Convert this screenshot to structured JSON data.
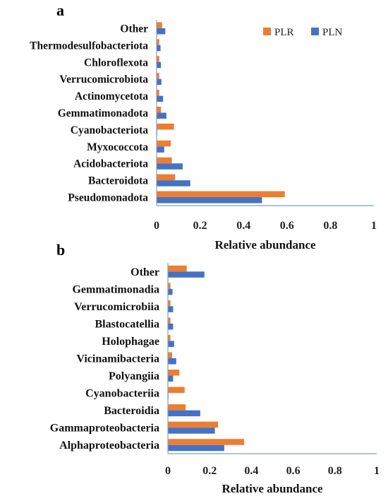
{
  "chart_data": [
    {
      "type": "bar",
      "orientation": "horizontal",
      "panel_label": "a",
      "categories": [
        "Other",
        "Thermodesulfobacteriota",
        "Chloroflexota",
        "Verrucomicrobiota",
        "Actinomycetota",
        "Gemmatimonadota",
        "Cyanobacteriota",
        "Myxococcota",
        "Acidobacteriota",
        "Bacteroidota",
        "Pseudomonadota"
      ],
      "series": [
        {
          "name": "PLR",
          "color": "#ED7D31",
          "values": [
            0.025,
            0.012,
            0.012,
            0.012,
            0.012,
            0.02,
            0.08,
            0.065,
            0.07,
            0.085,
            0.59
          ]
        },
        {
          "name": "PLN",
          "color": "#4472C4",
          "values": [
            0.04,
            0.018,
            0.02,
            0.022,
            0.03,
            0.045,
            0.002,
            0.035,
            0.12,
            0.155,
            0.485
          ]
        }
      ],
      "xticks": [
        "0",
        "0.2",
        "0.4",
        "0.6",
        "0.8",
        "1"
      ],
      "xlabel": "Relative abundance",
      "xlim": [
        0,
        1
      ],
      "legend_position": "top-right",
      "grid": false
    },
    {
      "type": "bar",
      "orientation": "horizontal",
      "panel_label": "b",
      "categories": [
        "Other",
        "Gemmatimonadia",
        "Verrucomicrobiia",
        "Blastocatellia",
        "Holophagae",
        "Vicinamibacteria",
        "Polyangiia",
        "Cyanobacteriia",
        "Bacteroidia",
        "Gammaproteobacteria",
        "Alphaproteobacteria"
      ],
      "series": [
        {
          "name": "PLR",
          "color": "#ED7D31",
          "values": [
            0.09,
            0.012,
            0.012,
            0.012,
            0.012,
            0.02,
            0.055,
            0.08,
            0.085,
            0.24,
            0.365
          ]
        },
        {
          "name": "PLN",
          "color": "#4472C4",
          "values": [
            0.175,
            0.022,
            0.025,
            0.025,
            0.03,
            0.04,
            0.025,
            0.002,
            0.155,
            0.225,
            0.27
          ]
        }
      ],
      "xticks": [
        "0",
        "0.2",
        "0.4",
        "0.6",
        "0.8",
        "1"
      ],
      "xlabel": "Relative abundance",
      "xlim": [
        0,
        1
      ],
      "grid": false
    }
  ]
}
